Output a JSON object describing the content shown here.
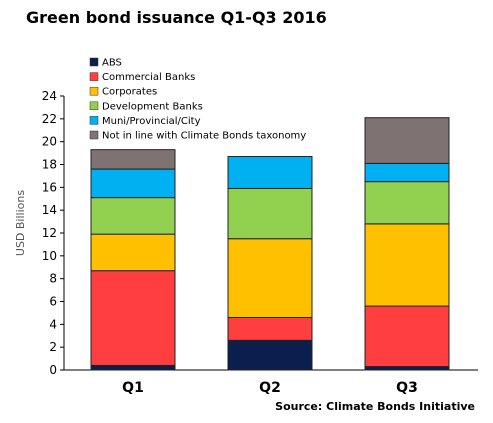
{
  "title": "Green bond issuance Q1-Q3 2016",
  "source": "Source: Climate Bonds Initiative",
  "chart_data": {
    "type": "bar",
    "stacked": true,
    "categories": [
      "Q1",
      "Q2",
      "Q3"
    ],
    "ylabel": "USD Billions",
    "xlabel": "",
    "ylim": [
      0,
      24
    ],
    "yticks": [
      0,
      2,
      4,
      6,
      8,
      10,
      12,
      14,
      16,
      18,
      20,
      22,
      24
    ],
    "grid": false,
    "legend_position": "top-left",
    "series": [
      {
        "name": "ABS",
        "color": "#0b1f4f",
        "values": [
          0.4,
          2.6,
          0.3
        ]
      },
      {
        "name": "Commercial Banks",
        "color": "#ff3f3f",
        "values": [
          8.3,
          2.0,
          5.3
        ]
      },
      {
        "name": "Corporates",
        "color": "#ffc000",
        "values": [
          3.2,
          6.9,
          7.2
        ]
      },
      {
        "name": "Development Banks",
        "color": "#92d050",
        "values": [
          3.2,
          4.4,
          3.7
        ]
      },
      {
        "name": "Muni/Provincial/City",
        "color": "#00b0f0",
        "values": [
          2.5,
          2.8,
          1.6
        ]
      },
      {
        "name": "Not in line with Climate Bonds taxonomy",
        "color": "#7f7272",
        "values": [
          1.7,
          0.0,
          4.0
        ]
      }
    ]
  }
}
